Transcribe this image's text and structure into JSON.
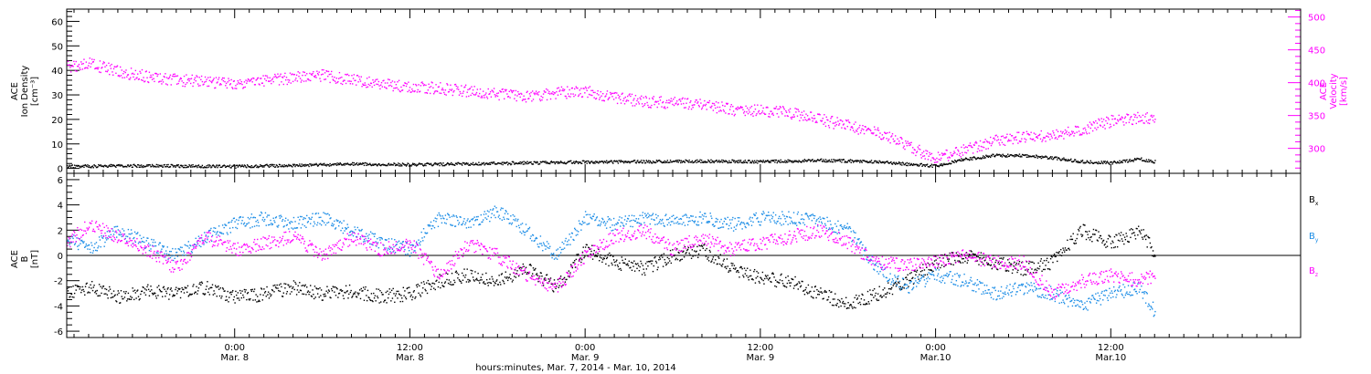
{
  "colors": {
    "axis": "#000000",
    "density": "#000000",
    "velocity": "#ff00ff",
    "bx": "#000000",
    "by": "#1a8ce6",
    "bz": "#ff00ff",
    "background": "#ffffff"
  },
  "caption": "hours:minutes, Mar. 7, 2014 - Mar. 10, 2014",
  "time_axis": {
    "tick_times": [
      "0:00",
      "12:00",
      "0:00",
      "12:00",
      "0:00",
      "12:00"
    ],
    "tick_dates": [
      "Mar. 8",
      "Mar. 8",
      "Mar. 9",
      "Mar. 9",
      "Mar.10",
      "Mar.10"
    ],
    "tick_hours": [
      24,
      36,
      48,
      60,
      72,
      84
    ],
    "xlim_hours": [
      12.5,
      97
    ],
    "data_end_hours": 87
  },
  "chart_data": [
    {
      "type": "scatter",
      "panel": "top",
      "ylabel_left": [
        "ACE",
        "Ion Density",
        "[cm⁻³]"
      ],
      "ylabel_right": [
        "ACE",
        "Velocity",
        "[km/s]"
      ],
      "left_axis": {
        "ylim": [
          -2,
          65
        ],
        "ticks": [
          0,
          10,
          20,
          30,
          40,
          50,
          60
        ],
        "tick_labels": [
          "0",
          "10",
          "20",
          "30",
          "40",
          "50",
          "60"
        ]
      },
      "right_axis": {
        "ylim": [
          262,
          512
        ],
        "ticks": [
          300,
          350,
          400,
          450,
          500
        ],
        "tick_labels": [
          "300",
          "350",
          "400",
          "450",
          "500"
        ]
      },
      "series": [
        {
          "key": "velocity",
          "axis": "right",
          "x_hours": [
            12.5,
            14,
            16,
            18,
            20,
            22,
            24,
            26,
            28,
            30,
            32,
            34,
            36,
            38,
            40,
            42,
            44,
            46,
            48,
            50,
            52,
            54,
            56,
            58,
            60,
            62,
            64,
            66,
            68,
            70,
            72,
            74,
            76,
            78,
            80,
            82,
            84,
            86,
            87
          ],
          "values": [
            425,
            430,
            418,
            410,
            405,
            402,
            400,
            405,
            408,
            412,
            405,
            398,
            395,
            392,
            388,
            383,
            380,
            385,
            388,
            378,
            372,
            370,
            368,
            360,
            358,
            355,
            345,
            335,
            325,
            305,
            285,
            298,
            312,
            318,
            320,
            330,
            342,
            348,
            345
          ]
        },
        {
          "key": "density",
          "axis": "left",
          "x_hours": [
            12.5,
            16,
            20,
            24,
            28,
            32,
            36,
            40,
            44,
            48,
            52,
            56,
            60,
            64,
            68,
            70,
            72,
            74,
            76,
            78,
            80,
            82,
            84,
            86,
            87
          ],
          "values": [
            1.0,
            1.3,
            1.2,
            1.0,
            1.5,
            2.0,
            1.8,
            2.0,
            2.5,
            2.8,
            3.0,
            3.2,
            3.0,
            3.5,
            3.0,
            2.0,
            1.2,
            4.0,
            5.5,
            5.5,
            4.5,
            3.0,
            2.5,
            4.0,
            3.0
          ]
        }
      ]
    },
    {
      "type": "scatter",
      "panel": "bottom",
      "ylabel_left": [
        "ACE",
        "B",
        "[nT]"
      ],
      "legend": [
        "Bx",
        "By",
        "Bz"
      ],
      "legend_position": "right",
      "ylim": [
        -6.5,
        6.5
      ],
      "ticks": [
        -6,
        -4,
        -2,
        0,
        2,
        4,
        6
      ],
      "tick_labels": [
        "-6",
        "-4",
        "-2",
        "0",
        "2",
        "4",
        "6"
      ],
      "zero_line": true,
      "series": [
        {
          "key": "bx",
          "x_hours": [
            12.5,
            14,
            16,
            18,
            20,
            22,
            24,
            26,
            28,
            30,
            32,
            34,
            36,
            38,
            40,
            42,
            44,
            46,
            48,
            50,
            52,
            54,
            56,
            58,
            60,
            62,
            64,
            66,
            68,
            70,
            72,
            74,
            76,
            78,
            80,
            82,
            84,
            86,
            87
          ],
          "values": [
            -3.0,
            -2.5,
            -3.2,
            -2.8,
            -3.0,
            -2.5,
            -3.3,
            -3.0,
            -2.5,
            -3.0,
            -2.8,
            -3.2,
            -3.0,
            -2.0,
            -1.5,
            -2.0,
            -1.0,
            -2.5,
            0.5,
            -0.5,
            -1.0,
            0.0,
            0.5,
            -1.0,
            -1.8,
            -2.0,
            -3.0,
            -3.8,
            -3.0,
            -2.0,
            -0.5,
            0.0,
            -0.5,
            -1.0,
            -0.5,
            2.0,
            1.0,
            2.0,
            0.2
          ]
        },
        {
          "key": "by",
          "x_hours": [
            12.5,
            14,
            16,
            18,
            20,
            22,
            24,
            26,
            28,
            30,
            32,
            34,
            36,
            38,
            40,
            42,
            44,
            46,
            48,
            50,
            52,
            54,
            56,
            58,
            60,
            62,
            64,
            66,
            68,
            70,
            72,
            74,
            76,
            78,
            80,
            82,
            84,
            86,
            87
          ],
          "values": [
            1.5,
            0.5,
            2.0,
            1.0,
            0.0,
            1.5,
            2.5,
            3.0,
            2.5,
            3.0,
            2.0,
            1.0,
            0.5,
            3.0,
            2.5,
            3.5,
            2.0,
            0.0,
            3.0,
            2.5,
            3.0,
            2.8,
            3.0,
            2.5,
            3.0,
            3.0,
            2.8,
            2.0,
            -1.0,
            -2.5,
            -1.5,
            -2.0,
            -3.0,
            -2.5,
            -3.0,
            -4.0,
            -3.0,
            -2.5,
            -4.5
          ]
        },
        {
          "key": "bz",
          "x_hours": [
            12.5,
            14,
            16,
            18,
            20,
            22,
            24,
            26,
            28,
            30,
            32,
            34,
            36,
            38,
            40,
            42,
            44,
            46,
            48,
            50,
            52,
            54,
            56,
            58,
            60,
            62,
            64,
            66,
            68,
            70,
            72,
            74,
            76,
            78,
            80,
            82,
            84,
            86,
            87
          ],
          "values": [
            1.0,
            2.5,
            1.5,
            0.5,
            -1.0,
            1.5,
            0.5,
            1.0,
            1.5,
            0.0,
            1.5,
            0.5,
            1.0,
            -1.5,
            1.0,
            0.0,
            -1.5,
            -2.5,
            0.0,
            1.5,
            2.0,
            0.5,
            1.5,
            0.5,
            1.0,
            1.5,
            2.0,
            1.0,
            -0.5,
            -0.8,
            -0.5,
            0.0,
            -0.5,
            -0.5,
            -3.0,
            -2.0,
            -1.5,
            -2.0,
            -1.5
          ]
        }
      ]
    }
  ]
}
